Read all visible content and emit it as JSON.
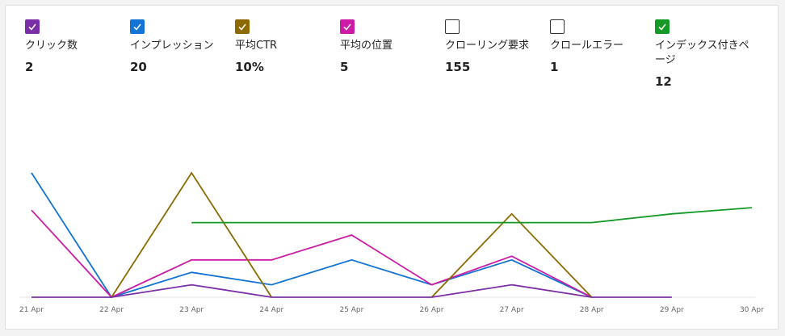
{
  "metrics": [
    {
      "label": "クリック数",
      "value": "2",
      "color": "#7b2fa6",
      "checked": true
    },
    {
      "label": "インプレッション",
      "value": "20",
      "color": "#1273d4",
      "checked": true
    },
    {
      "label": "平均CTR",
      "value": "10%",
      "color": "#8c6a00",
      "checked": true
    },
    {
      "label": "平均の位置",
      "value": "5",
      "color": "#cc1ba4",
      "checked": true
    },
    {
      "label": "クローリング要求",
      "value": "155",
      "color": "#333333",
      "checked": false
    },
    {
      "label": "クロールエラー",
      "value": "1",
      "color": "#333333",
      "checked": false
    },
    {
      "label": "インデックス付きページ",
      "value": "12",
      "color": "#159926",
      "checked": true
    }
  ],
  "chart_data": {
    "type": "line",
    "x": [
      "21 Apr",
      "22 Apr",
      "23 Apr",
      "24 Apr",
      "25 Apr",
      "26 Apr",
      "27 Apr",
      "28 Apr",
      "29 Apr",
      "30 Apr"
    ],
    "series": [
      {
        "name": "インプレッション",
        "color": "#1273d4",
        "values": [
          10,
          0,
          2,
          1,
          3,
          1,
          3,
          0,
          null,
          null
        ]
      },
      {
        "name": "平均の位置",
        "color": "#cc1ba4",
        "values": [
          7,
          0,
          3,
          3,
          5,
          1,
          3.3,
          0,
          null,
          null
        ]
      },
      {
        "name": "平均CTR",
        "color": "#8c6a00",
        "values": [
          null,
          0,
          10,
          0,
          null,
          0,
          6.7,
          0,
          null,
          null
        ]
      },
      {
        "name": "インデックス付きページ",
        "color": "#159926",
        "values": [
          null,
          null,
          6,
          6,
          6,
          6,
          6,
          6,
          6.7,
          7.2
        ]
      },
      {
        "name": "クリック数",
        "color": "#7b2fa6",
        "values": [
          0,
          0,
          1,
          0,
          0,
          0,
          1,
          0,
          0,
          null
        ]
      }
    ],
    "grid": false,
    "legend": "top-left"
  }
}
